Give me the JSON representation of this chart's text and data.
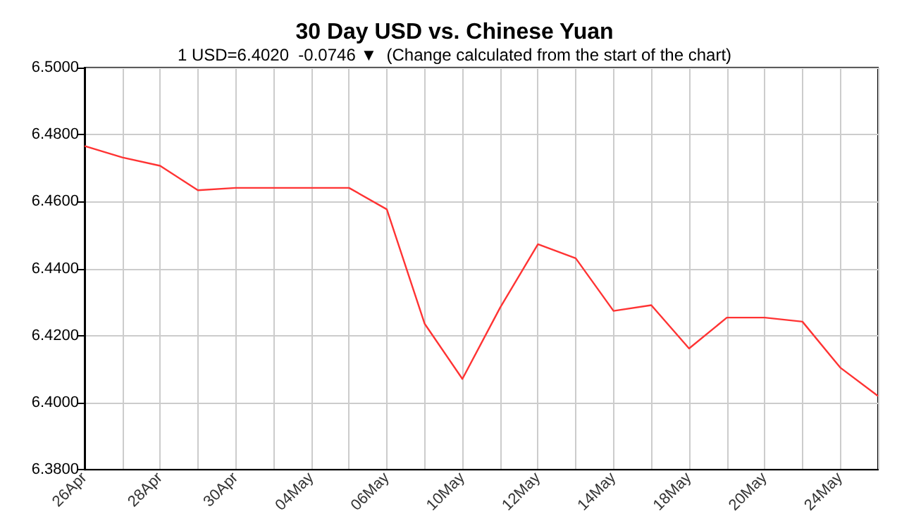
{
  "chart_data": {
    "type": "line",
    "title": "30 Day USD vs. Chinese Yuan",
    "subtitle": "1 USD=6.4020  -0.0746 ▼  (Change calculated from the start of the chart)",
    "categories": [
      "26Apr",
      null,
      "28Apr",
      null,
      "30Apr",
      null,
      "04May",
      null,
      "06May",
      null,
      "10May",
      null,
      "12May",
      null,
      "14May",
      null,
      "18May",
      null,
      "20May",
      null,
      "24May",
      null
    ],
    "series": [
      {
        "color": "#ff3333",
        "values": [
          6.4766,
          6.4732,
          6.4707,
          6.4634,
          6.4641,
          6.4641,
          6.4641,
          6.4641,
          6.4577,
          6.4236,
          6.4071,
          6.4284,
          6.4473,
          6.4431,
          6.4274,
          6.4291,
          6.4162,
          6.4254,
          6.4254,
          6.4242,
          6.4105,
          6.402
        ]
      }
    ],
    "ylim": [
      6.38,
      6.5
    ],
    "yticks": [
      {
        "value": 6.38,
        "label": "6.3800"
      },
      {
        "value": 6.4,
        "label": "6.4000"
      },
      {
        "value": 6.42,
        "label": "6.4200"
      },
      {
        "value": 6.44,
        "label": "6.4400"
      },
      {
        "value": 6.46,
        "label": "6.4600"
      },
      {
        "value": 6.48,
        "label": "6.4800"
      },
      {
        "value": 6.5,
        "label": "6.5000"
      }
    ],
    "grid": true,
    "marker": "none"
  }
}
